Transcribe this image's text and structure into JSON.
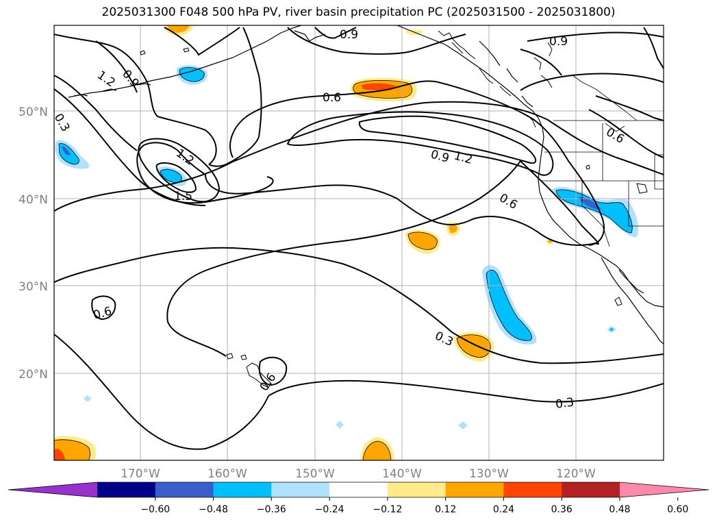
{
  "title": "2025031300 F048 500 hPa PV, river basin precipitation PC (2025031500 - 2025031800)",
  "lat_labels": [
    "50°N",
    "40°N",
    "30°N",
    "20°N"
  ],
  "lon_labels": [
    "170°W",
    "160°W",
    "150°W",
    "140°W",
    "130°W",
    "120°W"
  ],
  "colorbar": {
    "ticks": [
      "−0.60",
      "−0.48",
      "−0.36",
      "−0.24",
      "−0.12",
      "0.12",
      "0.24",
      "0.36",
      "0.48",
      "0.60"
    ],
    "colors": [
      "#9932cc",
      "#00008b",
      "#3a5fcd",
      "#00bfff",
      "#b0e2ff",
      "#ffffff",
      "#ffeb8c",
      "#ffa500",
      "#ff4500",
      "#b22222",
      "#ff89ad"
    ]
  },
  "contour_labels": [
    "0.9",
    "0.9",
    "1.2",
    "0.9",
    "0.6",
    "0.3",
    "1.2",
    "1.5",
    "0.9",
    "1.2",
    "0.6",
    "0.6",
    "0.6",
    "0.3",
    "0.6",
    "0.3"
  ],
  "colors": {
    "contour": "#000000",
    "grid": "#b0b0b0",
    "coast": "#000000"
  }
}
